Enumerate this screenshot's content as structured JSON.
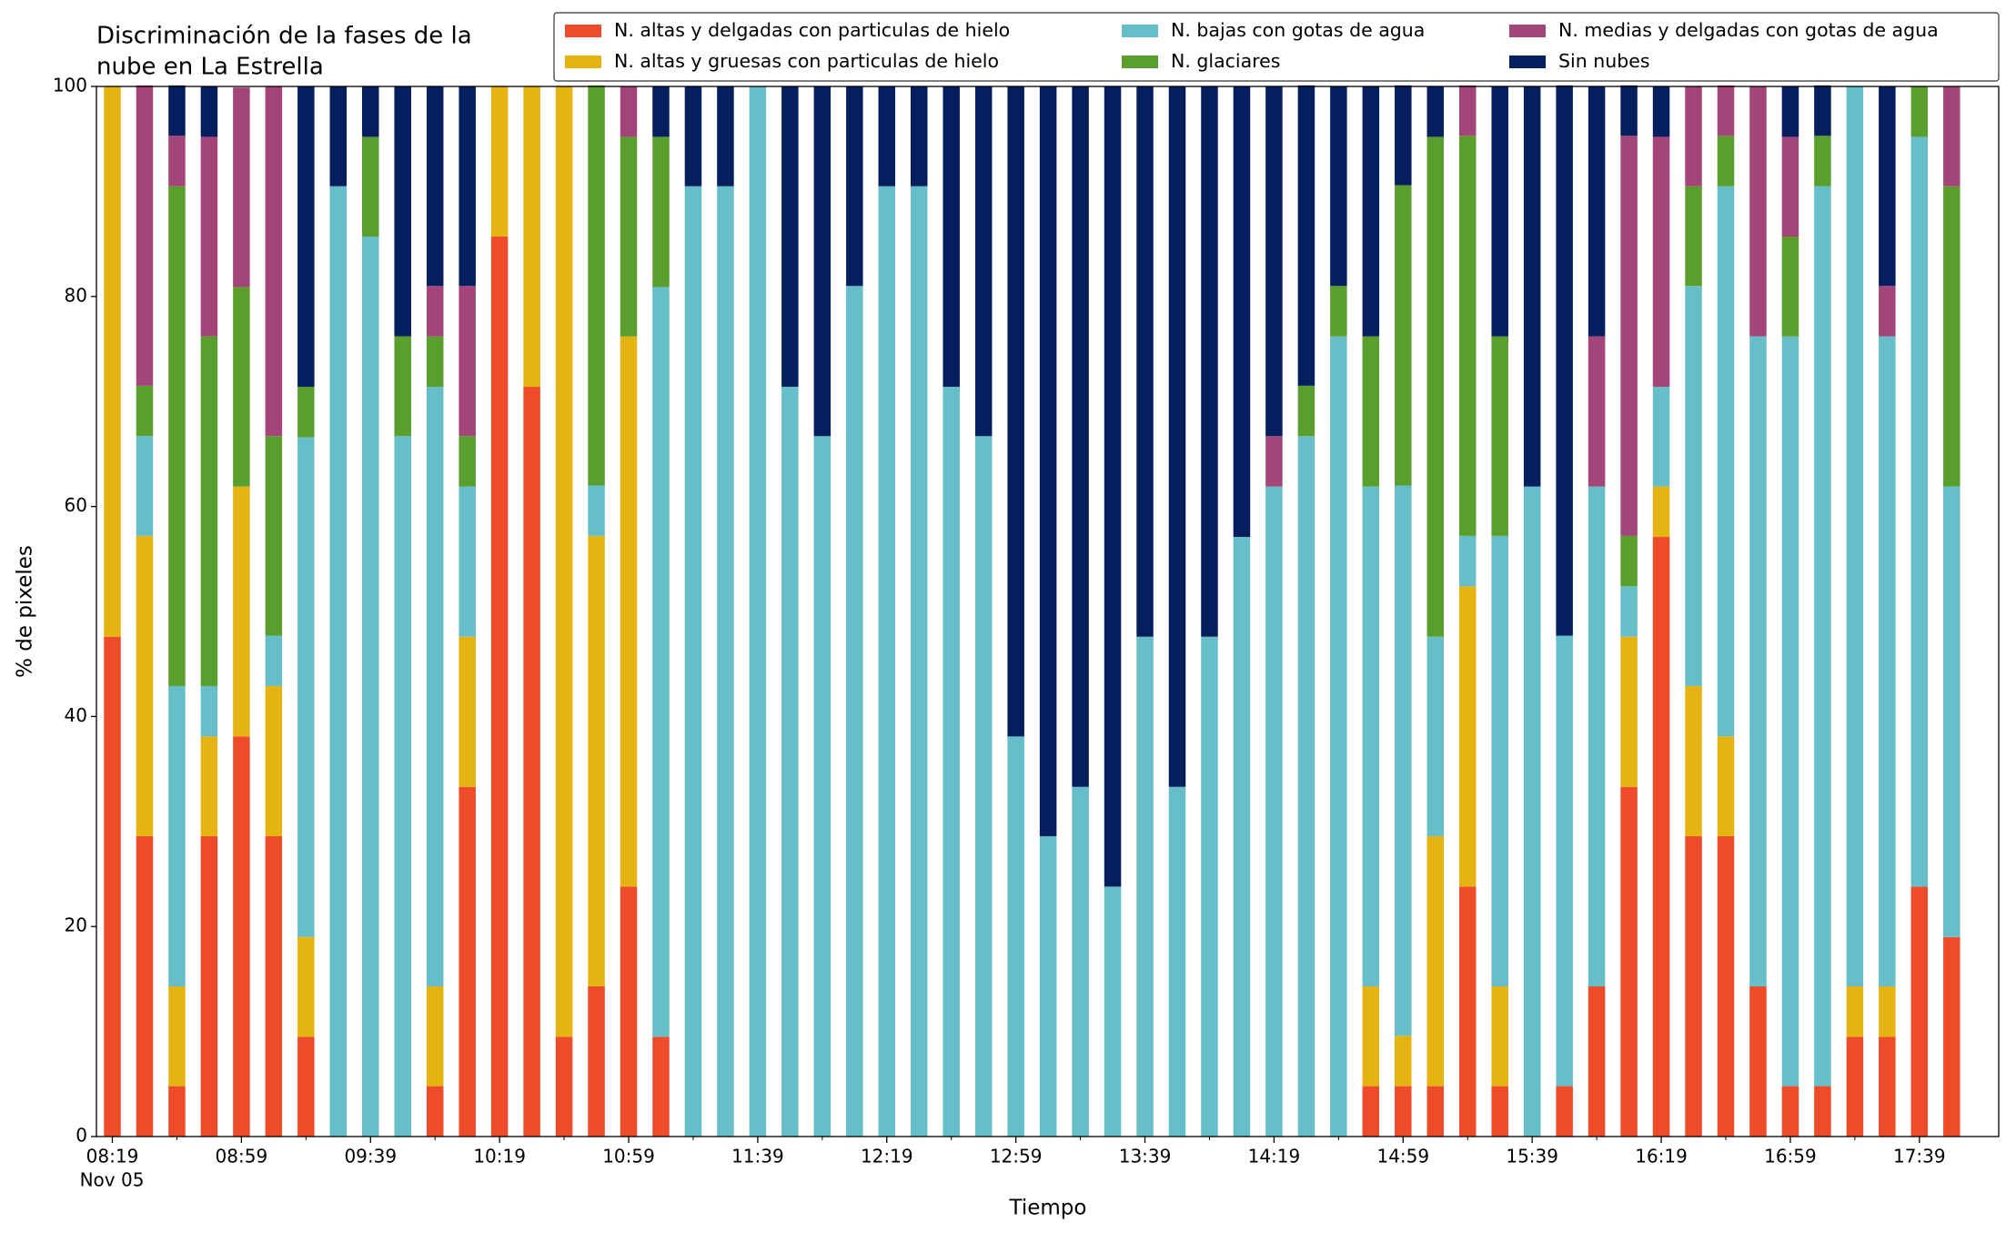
{
  "chart_data": {
    "type": "stacked_bar",
    "title": [
      "Discriminación de la fases de la",
      "nube en La Estrella"
    ],
    "xlabel": "Tiempo",
    "ylabel": "% de pixeles",
    "x_date_label": "Nov 05",
    "categories": [
      "08:19",
      null,
      null,
      null,
      "08:59",
      null,
      null,
      null,
      "09:39",
      null,
      null,
      null,
      "10:19",
      null,
      null,
      null,
      "10:59",
      null,
      null,
      null,
      "11:39",
      null,
      null,
      null,
      "12:19",
      null,
      null,
      null,
      "12:59",
      null,
      null,
      null,
      "13:39",
      null,
      null,
      null,
      "14:19",
      null,
      null,
      null,
      "14:59",
      null,
      null,
      null,
      "15:39",
      null,
      null,
      null,
      "16:19",
      null,
      null,
      null,
      "16:59",
      null,
      null,
      null,
      "17:39",
      null
    ],
    "ylim": [
      0,
      100
    ],
    "yticks": [
      0,
      20,
      40,
      60,
      80,
      100
    ],
    "grid": false,
    "legend": "upper right",
    "series": [
      {
        "name": "N. altas y delgadas con particulas de hielo",
        "color": "#ee4b2b",
        "values": [
          47.6,
          28.6,
          4.8,
          28.6,
          38.1,
          28.6,
          9.5,
          0,
          0,
          0,
          4.8,
          33.3,
          85.7,
          71.4,
          9.5,
          14.3,
          23.8,
          9.5,
          0,
          0,
          0,
          0,
          0,
          0,
          0,
          0,
          0,
          0,
          0,
          0,
          0,
          0,
          0,
          0,
          0,
          0,
          0,
          0,
          0,
          4.8,
          4.8,
          4.8,
          23.8,
          4.8,
          0,
          4.8,
          14.3,
          33.3,
          57.1,
          28.6,
          28.6,
          14.3,
          4.8,
          4.8,
          9.5,
          9.5,
          23.8,
          19.0
        ]
      },
      {
        "name": "N. altas y gruesas con particulas de hielo",
        "color": "#e5b412",
        "values": [
          52.4,
          28.6,
          9.5,
          9.5,
          23.8,
          14.3,
          9.5,
          0,
          0,
          0,
          9.5,
          14.3,
          14.3,
          28.6,
          90.5,
          42.9,
          52.4,
          0,
          0,
          0,
          0,
          0,
          0,
          0,
          0,
          0,
          0,
          0,
          0,
          0,
          0,
          0,
          0,
          0,
          0,
          0,
          0,
          0,
          0,
          9.5,
          4.8,
          23.8,
          28.6,
          9.5,
          0,
          0,
          0,
          14.3,
          4.8,
          14.3,
          9.5,
          0,
          0,
          0,
          4.8,
          4.8,
          0,
          0
        ]
      },
      {
        "name": "N. bajas con gotas de agua",
        "color": "#66bec8",
        "values": [
          0,
          9.5,
          28.6,
          4.8,
          0,
          4.8,
          47.6,
          90.5,
          85.7,
          66.7,
          57.1,
          14.3,
          0,
          0,
          0,
          4.8,
          0,
          71.4,
          90.5,
          90.5,
          100,
          71.4,
          66.7,
          81.0,
          90.5,
          90.5,
          71.4,
          66.7,
          38.1,
          28.6,
          33.3,
          23.8,
          47.6,
          33.3,
          47.6,
          57.1,
          61.9,
          66.7,
          76.2,
          47.6,
          52.4,
          19.0,
          4.8,
          42.9,
          61.9,
          42.9,
          47.6,
          4.8,
          9.5,
          38.1,
          52.4,
          61.9,
          71.4,
          85.7,
          85.7,
          61.9,
          71.4,
          42.9
        ]
      },
      {
        "name": "N. glaciares",
        "color": "#5a9e2e",
        "values": [
          0,
          4.8,
          47.6,
          33.3,
          19.0,
          19.0,
          4.8,
          0,
          9.5,
          9.5,
          4.8,
          4.8,
          0,
          0,
          0,
          38.1,
          19.0,
          14.3,
          0,
          0,
          0,
          0,
          0,
          0,
          0,
          0,
          0,
          0,
          0,
          0,
          0,
          0,
          0,
          0,
          0,
          0,
          0,
          4.8,
          4.8,
          14.3,
          28.6,
          47.6,
          38.1,
          19.0,
          0,
          0,
          0,
          4.8,
          0,
          9.5,
          4.8,
          0,
          9.5,
          4.8,
          0,
          0,
          4.8,
          28.6
        ]
      },
      {
        "name": "N. medias y delgadas con gotas de agua",
        "color": "#a4457a",
        "values": [
          0,
          28.6,
          4.8,
          19.0,
          19.0,
          33.3,
          0,
          0,
          0,
          0,
          4.8,
          14.3,
          0,
          0,
          0,
          0,
          4.8,
          0,
          0,
          0,
          0,
          0,
          0,
          0,
          0,
          0,
          0,
          0,
          0,
          0,
          0,
          0,
          0,
          0,
          0,
          0,
          4.8,
          0,
          0,
          0,
          0,
          0,
          4.8,
          0,
          0,
          0,
          14.3,
          38.1,
          23.8,
          9.5,
          4.8,
          23.8,
          9.5,
          0,
          0,
          4.8,
          0,
          9.5
        ]
      },
      {
        "name": "Sin nubes",
        "color": "#051f5e",
        "values": [
          0,
          0,
          4.8,
          4.8,
          0,
          0,
          28.6,
          9.5,
          4.8,
          23.8,
          19.0,
          19.0,
          0,
          0,
          0,
          0,
          0,
          4.8,
          9.5,
          9.5,
          0,
          28.6,
          33.3,
          19.0,
          9.5,
          9.5,
          28.6,
          33.3,
          61.9,
          71.4,
          66.7,
          76.2,
          52.4,
          66.7,
          52.4,
          42.9,
          33.3,
          28.6,
          19.0,
          23.8,
          9.5,
          4.8,
          0,
          23.8,
          38.1,
          52.4,
          23.8,
          4.8,
          4.8,
          0,
          0,
          0,
          4.8,
          4.8,
          0,
          19.0,
          0,
          0
        ]
      }
    ]
  }
}
